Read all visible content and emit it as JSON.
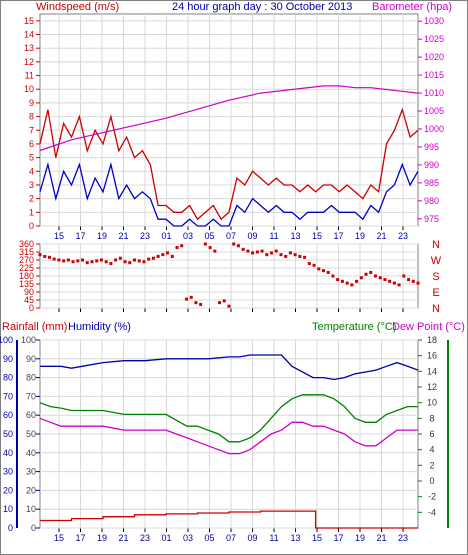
{
  "title": "24 hour graph day : 30 October 2013",
  "x_ticks": [
    "15",
    "17",
    "19",
    "21",
    "23",
    "01",
    "03",
    "05",
    "07",
    "09",
    "11",
    "13",
    "15",
    "17",
    "19",
    "21",
    "23"
  ],
  "colors": {
    "wind": "#cc0000",
    "gust": "#cc0000",
    "avg_wind": "#0000cc",
    "baro": "#cc00cc",
    "dir": "#cc0000",
    "rain": "#cc0000",
    "humidity": "#0000aa",
    "temp": "#008000",
    "dew": "#cc00cc",
    "grid": "#d8d8d8",
    "border": "#808080"
  },
  "chart_data": [
    {
      "type": "line",
      "title": "24 hour graph day : 30 October 2013",
      "y_left_label": "Windspeed (m/s)",
      "y_right_label": "Barometer (hpa)",
      "y_left_ticks": [
        "0",
        "1",
        "2",
        "3",
        "4",
        "5",
        "6",
        "7",
        "8",
        "9",
        "10",
        "11",
        "12",
        "13",
        "14",
        "15"
      ],
      "y_right_ticks": [
        "975",
        "980",
        "985",
        "990",
        "995",
        "1000",
        "1005",
        "1010",
        "1015",
        "1020",
        "1025",
        "1030"
      ],
      "ylim_left": [
        0,
        15.5
      ],
      "ylim_right": [
        973,
        1032
      ],
      "series": [
        {
          "key": "gust",
          "x": [
            0,
            0.5,
            1,
            1.5,
            2,
            2.5,
            3,
            3.5,
            4,
            4.5,
            5,
            5.5,
            6,
            6.5,
            7,
            7.5,
            8,
            8.5,
            9,
            9.5,
            10,
            10.5,
            11,
            11.5,
            12,
            12.5,
            13,
            13.5,
            14,
            14.5,
            15,
            15.5,
            16,
            16.5,
            17,
            17.5,
            18,
            18.5,
            19,
            19.5,
            20,
            20.5,
            21,
            21.5,
            22,
            22.5,
            23,
            23.5,
            24
          ],
          "values": [
            6,
            8.5,
            5,
            7.5,
            6.5,
            8,
            5.5,
            7,
            6,
            8,
            5.5,
            6.5,
            5,
            5.5,
            4.5,
            1.5,
            1.5,
            1,
            1,
            1.5,
            0.5,
            1,
            1.5,
            0.5,
            1,
            3.5,
            3,
            4,
            3.5,
            3,
            3.5,
            3,
            3,
            2.5,
            3,
            2.5,
            3,
            3,
            2.5,
            3,
            2.5,
            2,
            3,
            2.5,
            6,
            7,
            8.5,
            6.5,
            7
          ]
        },
        {
          "key": "avg_wind",
          "x": [
            0,
            0.5,
            1,
            1.5,
            2,
            2.5,
            3,
            3.5,
            4,
            4.5,
            5,
            5.5,
            6,
            6.5,
            7,
            7.5,
            8,
            8.5,
            9,
            9.5,
            10,
            10.5,
            11,
            11.5,
            12,
            12.5,
            13,
            13.5,
            14,
            14.5,
            15,
            15.5,
            16,
            16.5,
            17,
            17.5,
            18,
            18.5,
            19,
            19.5,
            20,
            20.5,
            21,
            21.5,
            22,
            22.5,
            23,
            23.5,
            24
          ],
          "values": [
            2.5,
            4.5,
            2,
            4,
            3,
            4.5,
            2,
            3.5,
            2.5,
            4.5,
            2,
            3,
            2,
            2.5,
            2,
            0.5,
            0.5,
            0,
            0,
            0.5,
            0,
            0,
            0.5,
            0,
            0,
            1.5,
            1,
            2,
            1.5,
            1,
            1.5,
            1,
            1,
            0.5,
            1,
            1,
            1,
            1.5,
            1,
            1,
            1,
            0.5,
            1.5,
            1,
            2.5,
            3,
            4.5,
            3,
            4
          ]
        },
        {
          "key": "baro",
          "x": [
            0,
            2,
            4,
            6,
            8,
            10,
            12,
            14,
            16,
            18,
            19,
            20,
            21,
            22,
            23,
            24
          ],
          "values": [
            994,
            997,
            999,
            1001,
            1003,
            1005.5,
            1008,
            1010,
            1011,
            1012,
            1012,
            1011.5,
            1011.5,
            1011,
            1010.5,
            1010
          ]
        }
      ]
    },
    {
      "type": "scatter",
      "y_left_ticks": [
        "0",
        "45",
        "90",
        "135",
        "180",
        "225",
        "270",
        "315",
        "360"
      ],
      "y_right_ticks": [
        "N",
        "W",
        "S",
        "E",
        "N"
      ],
      "ylim": [
        0,
        360
      ],
      "series": [
        {
          "key": "dir",
          "x": [
            0,
            0.3,
            0.6,
            0.9,
            1.2,
            1.5,
            1.8,
            2.1,
            2.4,
            2.7,
            3,
            3.3,
            3.6,
            3.9,
            4.2,
            4.5,
            4.8,
            5.1,
            5.4,
            5.7,
            6,
            6.3,
            6.6,
            6.9,
            7.2,
            7.5,
            7.8,
            8.1,
            8.4,
            8.7,
            9,
            9.3,
            9.6,
            9.9,
            10.2,
            10.5,
            10.8,
            11.1,
            11.4,
            11.7,
            12,
            12.3,
            12.6,
            12.9,
            13.2,
            13.5,
            13.8,
            14.1,
            14.4,
            14.7,
            15,
            15.3,
            15.6,
            15.9,
            16.2,
            16.5,
            16.8,
            17.1,
            17.4,
            17.7,
            18,
            18.3,
            18.6,
            18.9,
            19.2,
            19.5,
            19.8,
            20.1,
            20.4,
            20.7,
            21,
            21.3,
            21.6,
            21.9,
            22.2,
            22.5,
            22.8,
            23.1,
            23.4,
            23.7,
            24
          ],
          "values": [
            300,
            290,
            285,
            275,
            270,
            265,
            270,
            260,
            265,
            270,
            255,
            260,
            265,
            270,
            260,
            250,
            270,
            280,
            260,
            255,
            270,
            265,
            260,
            275,
            280,
            290,
            300,
            310,
            290,
            340,
            350,
            50,
            60,
            30,
            20,
            360,
            340,
            320,
            30,
            40,
            10,
            360,
            350,
            330,
            320,
            310,
            315,
            320,
            300,
            310,
            320,
            300,
            290,
            310,
            300,
            290,
            285,
            250,
            240,
            220,
            210,
            200,
            180,
            160,
            150,
            140,
            130,
            150,
            170,
            190,
            200,
            180,
            170,
            160,
            150,
            140,
            130,
            180,
            160,
            150,
            140
          ]
        }
      ]
    },
    {
      "type": "line",
      "y_left_label_1": "Rainfall (mm)",
      "y_left_label_2": "Humidity (%)",
      "y_right_label_1": "Temperature (°C)",
      "y_right_label_2": "Dew Point (°C)",
      "y_rain_ticks": [
        "0",
        "10",
        "20",
        "30",
        "40",
        "50",
        "60",
        "70",
        "80",
        "90",
        "100"
      ],
      "y_hum_ticks": [
        "0",
        "10",
        "20",
        "30",
        "40",
        "50",
        "60",
        "70",
        "80",
        "90",
        "100"
      ],
      "y_temp_ticks": [
        "-4",
        "-2",
        "0",
        "2",
        "4",
        "6",
        "8",
        "10",
        "12",
        "14",
        "16",
        "18"
      ],
      "ylim_hum": [
        0,
        100
      ],
      "ylim_temp": [
        -6,
        18
      ],
      "series": [
        {
          "key": "rain",
          "x": [
            0,
            2,
            4,
            6,
            8,
            10,
            12,
            14,
            16,
            17,
            17.5,
            24
          ],
          "values": [
            4,
            5,
            6,
            7,
            7.5,
            8,
            8.5,
            9,
            9,
            9,
            0,
            0
          ]
        },
        {
          "key": "humidity",
          "x": [
            0,
            2,
            3,
            4,
            6,
            8,
            10,
            12,
            14,
            16,
            18,
            19,
            20,
            21,
            22,
            23,
            24,
            26,
            27,
            28,
            29,
            30,
            31,
            32,
            33,
            34,
            35,
            36
          ],
          "values": [
            86,
            86,
            85,
            86,
            88,
            89,
            89,
            90,
            90,
            90,
            91,
            91,
            92,
            92,
            92,
            92,
            86,
            80,
            80,
            79,
            80,
            82,
            83,
            84,
            86,
            88,
            86,
            84
          ]
        },
        {
          "key": "temp",
          "x": [
            0,
            1,
            2,
            3,
            4,
            6,
            8,
            10,
            12,
            14,
            15,
            16,
            17,
            18,
            19,
            20,
            21,
            22,
            23,
            24,
            25,
            26,
            27,
            28,
            29,
            30,
            31,
            32,
            33,
            34,
            35,
            36
          ],
          "values": [
            10,
            9.5,
            9.3,
            9,
            9,
            9,
            8.5,
            8.5,
            8.5,
            7,
            7,
            6.5,
            6,
            5,
            5,
            5.5,
            6.5,
            8,
            9.5,
            10.5,
            11,
            11,
            11,
            10.5,
            9.5,
            8,
            7.5,
            7.5,
            8.5,
            9,
            9.5,
            9.5
          ]
        },
        {
          "key": "dew",
          "x": [
            0,
            1,
            2,
            3,
            4,
            6,
            8,
            10,
            12,
            14,
            15,
            16,
            17,
            18,
            19,
            20,
            21,
            22,
            23,
            24,
            25,
            26,
            27,
            28,
            29,
            30,
            31,
            32,
            33,
            34,
            35,
            36
          ],
          "values": [
            8,
            7.5,
            7,
            7,
            7,
            7,
            6.5,
            6.5,
            6.5,
            5.5,
            5,
            4.5,
            4,
            3.5,
            3.5,
            4,
            5,
            6,
            6.5,
            7.5,
            7.5,
            7,
            7,
            6.5,
            6,
            5,
            4.5,
            4.5,
            5.5,
            6.5,
            6.5,
            6.5
          ]
        }
      ]
    }
  ]
}
